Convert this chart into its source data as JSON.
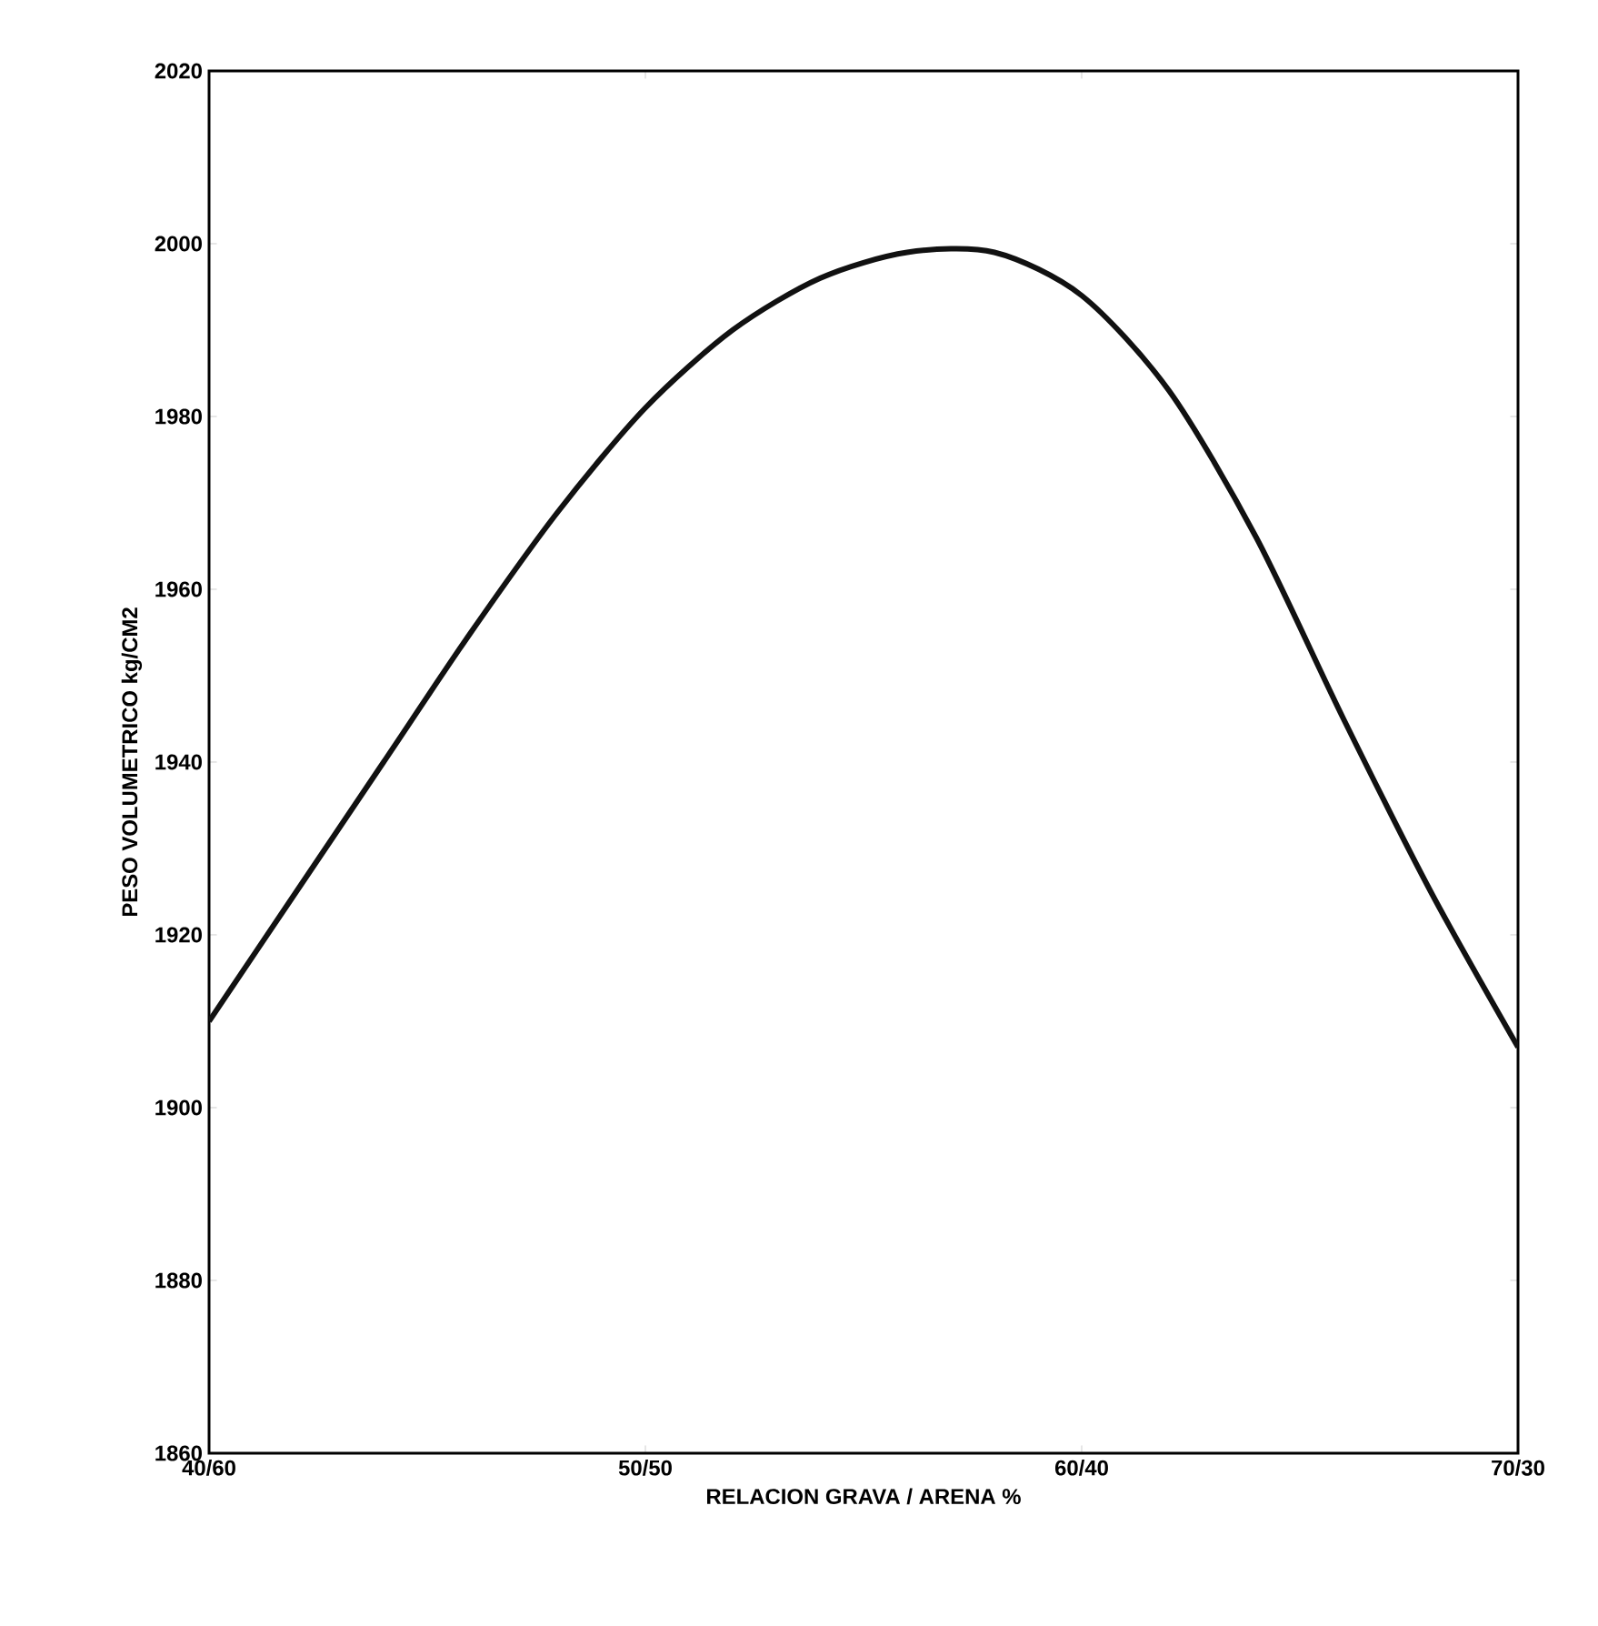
{
  "chart_data": {
    "type": "line",
    "xlabel": "RELACION GRAVA / ARENA %",
    "ylabel": "PESO VOLUMETRICO kg/CM2",
    "categories": [
      "40/60",
      null,
      null,
      null,
      null,
      "50/50",
      null,
      null,
      null,
      null,
      "60/40",
      null,
      null,
      null,
      null,
      "70/30"
    ],
    "series": [
      {
        "color": "#111111",
        "values": [
          1910,
          1925,
          1940,
          1955,
          1969,
          1981,
          1990,
          1996,
          1999,
          1999,
          1994,
          1983,
          1966,
          1945,
          1925,
          1907
        ]
      }
    ],
    "ylim": [
      1860,
      2020
    ],
    "yticks": [
      1860,
      1880,
      1900,
      1920,
      1940,
      1960,
      1980,
      2000,
      2020
    ],
    "grid": false,
    "marker": "none",
    "line_style": "solid"
  }
}
